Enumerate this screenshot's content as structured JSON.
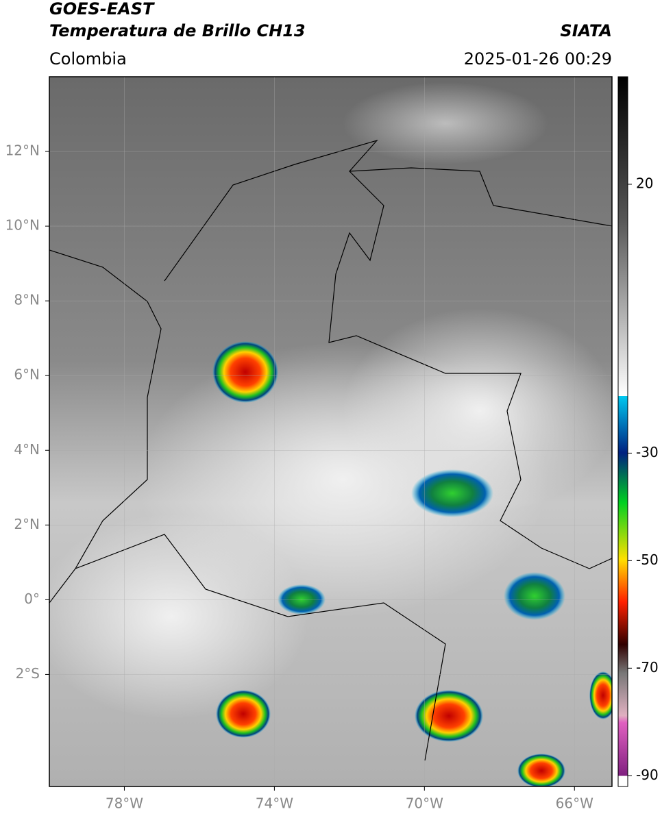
{
  "header": {
    "satellite": "GOES-EAST",
    "product": "Temperatura de Brillo CH13",
    "source": "SIATA",
    "region": "Colombia",
    "datetime": "2025-01-26 00:29"
  },
  "map": {
    "xlim": [
      -80,
      -65
    ],
    "ylim": [
      -5,
      14
    ],
    "xticks": [
      {
        "value": -78,
        "label": "78°W"
      },
      {
        "value": -74,
        "label": "74°W"
      },
      {
        "value": -70,
        "label": "70°W"
      },
      {
        "value": -66,
        "label": "66°W"
      }
    ],
    "yticks": [
      {
        "value": 12,
        "label": "12°N"
      },
      {
        "value": 10,
        "label": "10°N"
      },
      {
        "value": 8,
        "label": "8°N"
      },
      {
        "value": 6,
        "label": "6°N"
      },
      {
        "value": 4,
        "label": "4°N"
      },
      {
        "value": 2,
        "label": "2°N"
      },
      {
        "value": 0,
        "label": "0°"
      },
      {
        "value": -2,
        "label": "2°S"
      }
    ]
  },
  "colorbar": {
    "lim": [
      -92,
      40
    ],
    "ticks": [
      20,
      -30,
      -50,
      -70,
      -90
    ]
  }
}
